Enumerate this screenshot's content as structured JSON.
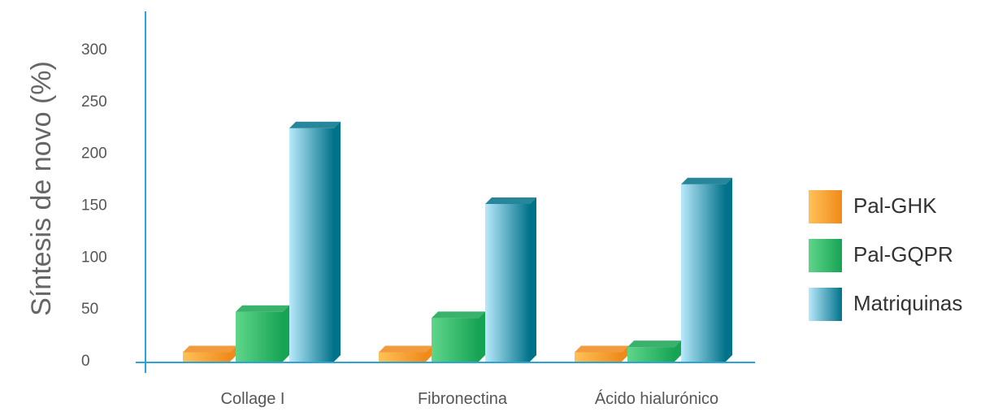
{
  "chart_data": {
    "type": "bar",
    "title": "",
    "ylabel": "Síntesis de novo (%)",
    "xlabel": "",
    "ylim": [
      0,
      300
    ],
    "yticks": [
      0,
      50,
      100,
      150,
      200,
      250,
      300
    ],
    "categories": [
      "Collage I",
      "Fibronectina",
      "Ácido hialurónico"
    ],
    "series": [
      {
        "name": "Pal-GHK",
        "values": [
          9,
          9,
          9
        ]
      },
      {
        "name": "Pal-GQPR",
        "values": [
          48,
          42,
          14
        ]
      },
      {
        "name": "Matriquinas",
        "values": [
          225,
          152,
          171
        ]
      }
    ],
    "legend_position": "right",
    "grid": false,
    "colors": {
      "Pal-GHK": {
        "light": "#ffc158",
        "dark": "#f08a1a"
      },
      "Pal-GQPR": {
        "light": "#5fd68a",
        "dark": "#17a354"
      },
      "Matriquinas": {
        "light": "#b9e9fb",
        "dark": "#00728a"
      },
      "axis": "#2aa5d8"
    }
  }
}
